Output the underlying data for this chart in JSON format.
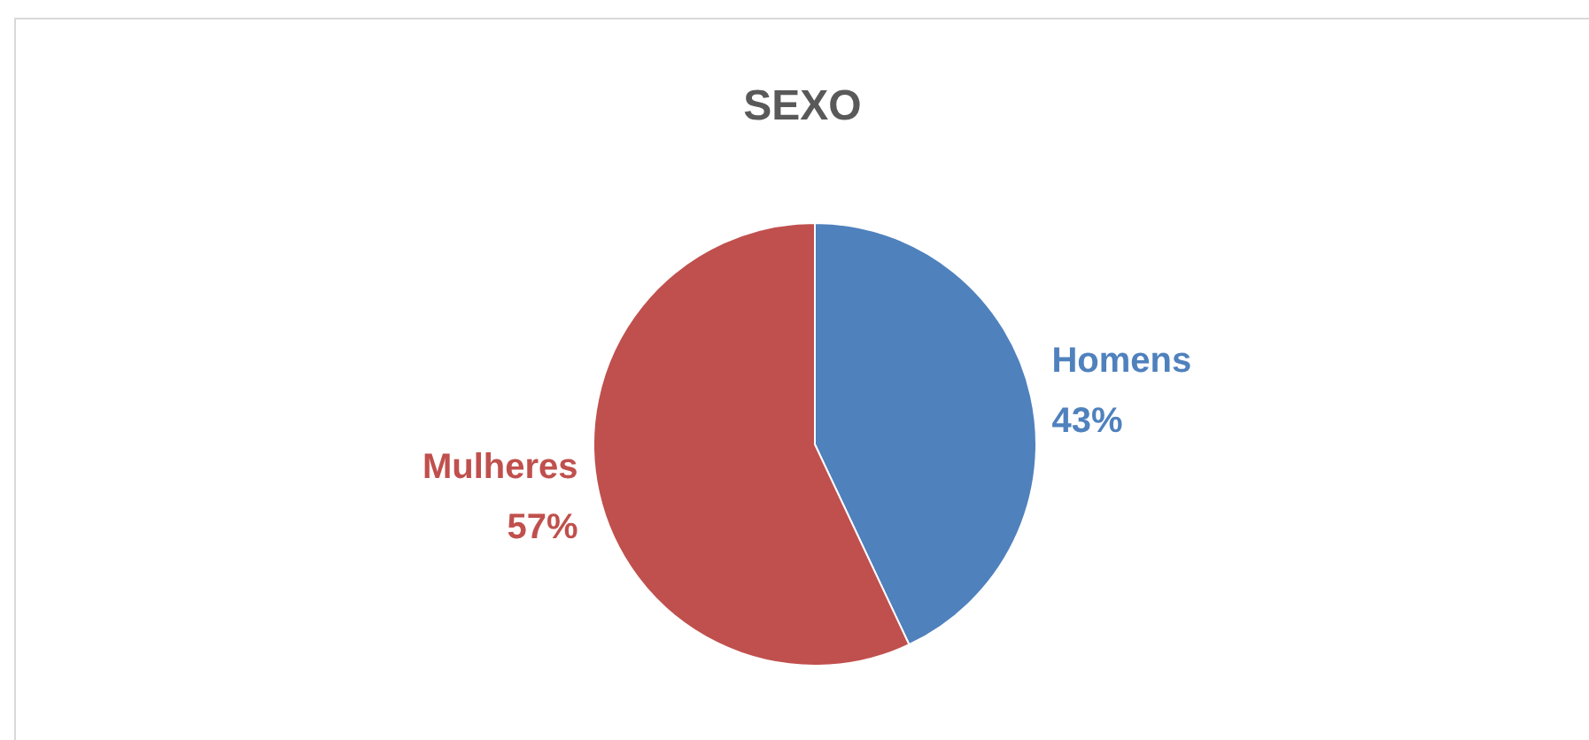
{
  "chart_data": {
    "type": "pie",
    "title": "SEXO",
    "categories": [
      "Homens",
      "Mulheres"
    ],
    "values": [
      43,
      57
    ],
    "colors": [
      "#4f81bd",
      "#c0504d"
    ],
    "value_labels": [
      "43%",
      "57%"
    ],
    "legend": false
  }
}
